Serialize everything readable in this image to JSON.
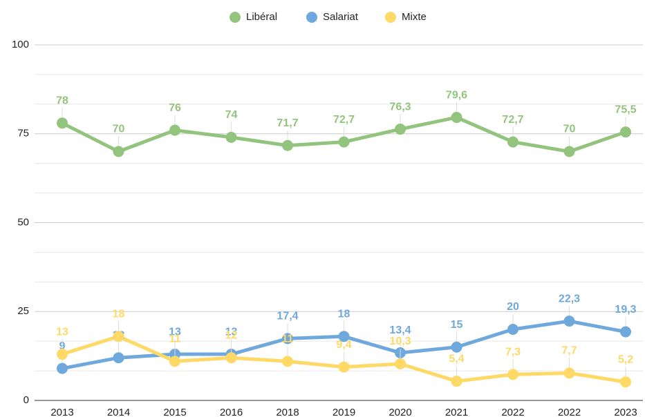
{
  "chart_data": {
    "type": "line",
    "categories": [
      "2013",
      "2014",
      "2015",
      "2016",
      "2018",
      "2019",
      "2020",
      "2021",
      "2022",
      "2022",
      "2023"
    ],
    "series": [
      {
        "name": "Libéral",
        "color": "#93c47d",
        "values": [
          78,
          70,
          76,
          74,
          71.7,
          72.7,
          76.3,
          79.6,
          72.7,
          70,
          75.5
        ],
        "value_labels": [
          "78",
          "70",
          "76",
          "74",
          "71,7",
          "72,7",
          "76,3",
          "79,6",
          "72,7",
          "70",
          "75,5"
        ]
      },
      {
        "name": "Salariat",
        "color": "#6fa8dc",
        "values": [
          9,
          12,
          13,
          13,
          17.4,
          18,
          13.4,
          15,
          20,
          22.3,
          19.3
        ],
        "value_labels": [
          "9",
          "12",
          "13",
          "13",
          "17,4",
          "18",
          "13,4",
          "15",
          "20",
          "22,3",
          "19,3"
        ]
      },
      {
        "name": "Mixte",
        "color": "#ffd966",
        "values": [
          13,
          18,
          11,
          12,
          11,
          9.4,
          10.3,
          5.4,
          7.3,
          7.7,
          5.2
        ],
        "value_labels": [
          "13",
          "18",
          "11",
          "12",
          "11",
          "9,4",
          "10,3",
          "5,4",
          "7,3",
          "7,7",
          "5,2"
        ]
      }
    ],
    "ylim": [
      0,
      100
    ],
    "yticks": [
      0,
      25,
      50,
      75,
      100
    ],
    "grid": true,
    "minor_gridlines_per_interval": 2,
    "legend": "top"
  }
}
